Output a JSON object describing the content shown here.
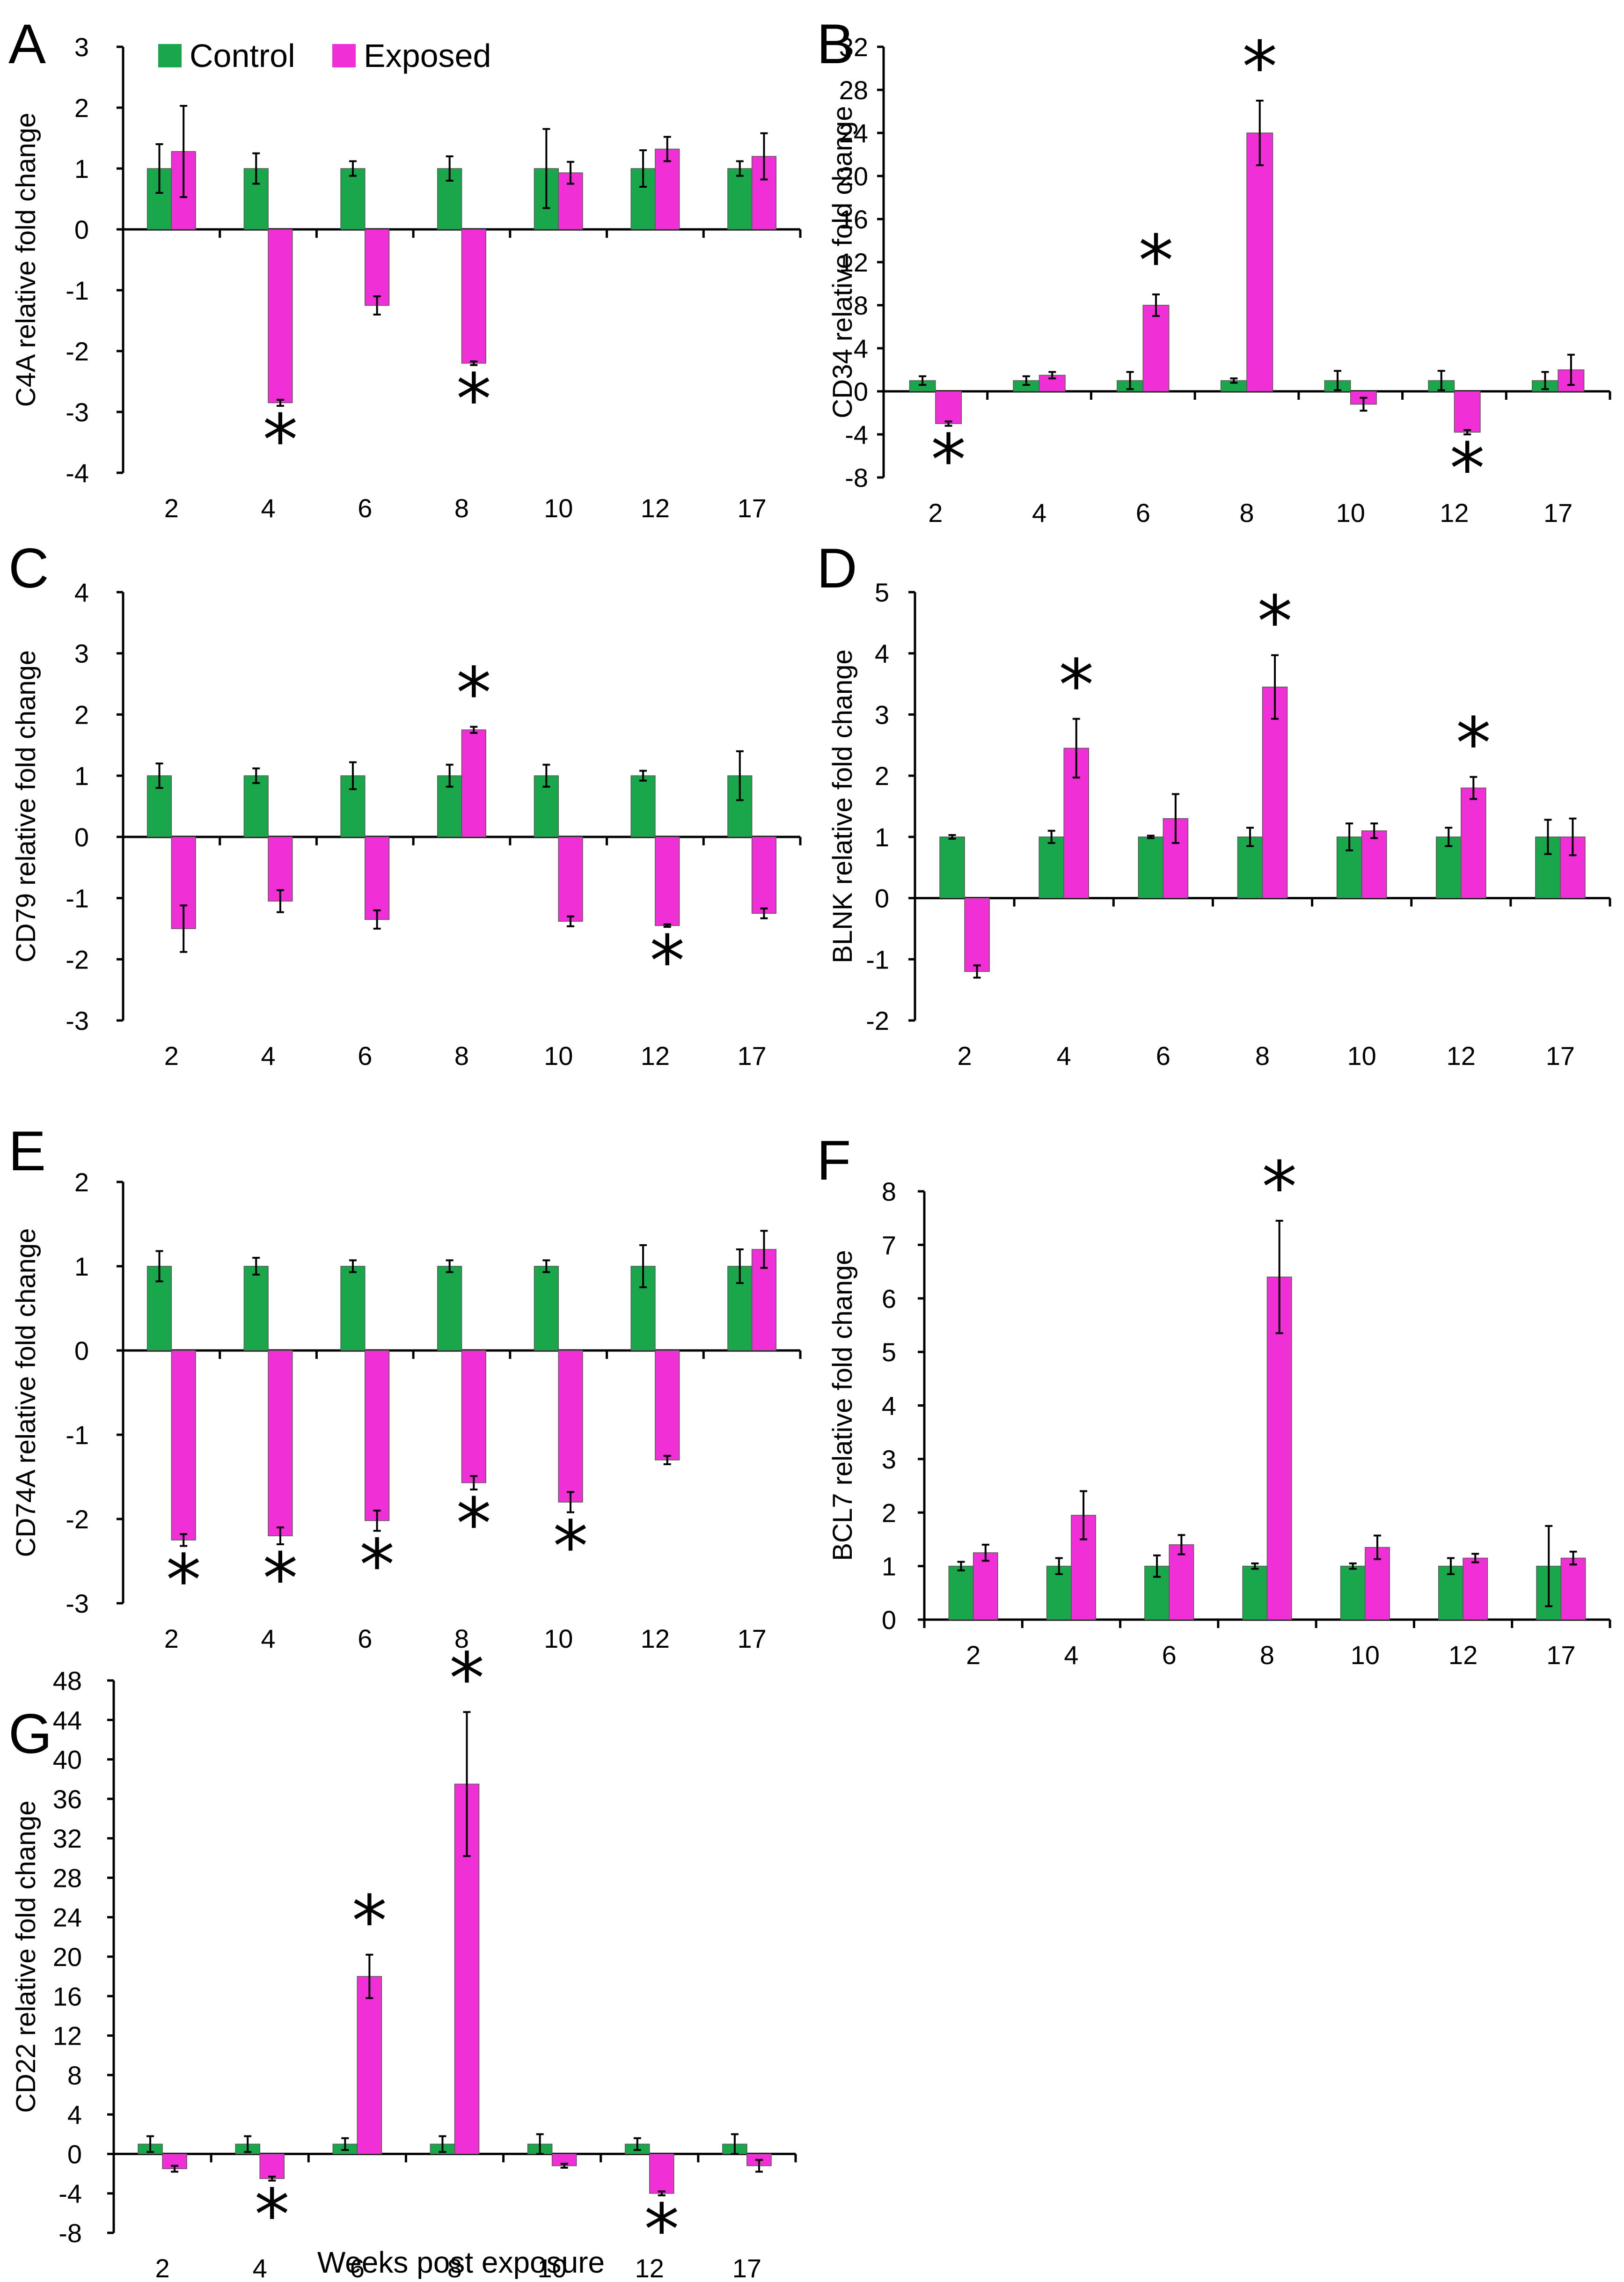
{
  "colors": {
    "control": "#1aa64a",
    "exposed": "#f02fd6",
    "axis": "#000000"
  },
  "legend": {
    "control": "Control",
    "exposed": "Exposed"
  },
  "xlabel": "Weeks post exposure",
  "chart_data": [
    {
      "panel": "A",
      "type": "bar",
      "ylabel": "C4A relative fold change",
      "categories": [
        "2",
        "4",
        "6",
        "8",
        "10",
        "12",
        "17"
      ],
      "ylim": [
        -4,
        3
      ],
      "yticks": [
        3,
        2,
        1,
        0,
        -1,
        -2,
        -3,
        -4
      ],
      "series": [
        {
          "name": "Control",
          "values": [
            1,
            1,
            1,
            1,
            1,
            1,
            1
          ],
          "errors": [
            0.4,
            0.25,
            0.12,
            0.2,
            0.65,
            0.3,
            0.12
          ]
        },
        {
          "name": "Exposed",
          "values": [
            1.28,
            -2.85,
            -1.25,
            -2.2,
            0.93,
            1.32,
            1.2
          ],
          "errors": [
            0.75,
            0.05,
            0.15,
            0.03,
            0.18,
            0.2,
            0.38
          ]
        }
      ],
      "significant": [
        {
          "category": "4",
          "mark": "*"
        },
        {
          "category": "8",
          "mark": "*"
        }
      ]
    },
    {
      "panel": "B",
      "type": "bar",
      "ylabel": "CD34 relative fold change",
      "categories": [
        "2",
        "4",
        "6",
        "8",
        "10",
        "12",
        "17"
      ],
      "ylim": [
        -8,
        32
      ],
      "yticks": [
        32,
        28,
        24,
        20,
        16,
        12,
        8,
        4,
        0,
        -4,
        -8
      ],
      "series": [
        {
          "name": "Control",
          "values": [
            1,
            1,
            1,
            1,
            1,
            1,
            1
          ],
          "errors": [
            0.4,
            0.4,
            0.8,
            0.2,
            0.9,
            0.9,
            0.8
          ]
        },
        {
          "name": "Exposed",
          "values": [
            -3,
            1.5,
            8,
            24,
            -1.2,
            -3.8,
            2
          ],
          "errors": [
            0.2,
            0.3,
            1,
            3,
            0.6,
            0.2,
            1.4
          ]
        }
      ],
      "significant": [
        {
          "category": "2",
          "mark": "*"
        },
        {
          "category": "6",
          "mark": "*"
        },
        {
          "category": "8",
          "mark": "*"
        },
        {
          "category": "12",
          "mark": "*"
        }
      ]
    },
    {
      "panel": "C",
      "type": "bar",
      "ylabel": "CD79 relative fold change",
      "categories": [
        "2",
        "4",
        "6",
        "8",
        "10",
        "12",
        "17"
      ],
      "ylim": [
        -3,
        4
      ],
      "yticks": [
        4,
        3,
        2,
        1,
        0,
        -1,
        -2,
        -3
      ],
      "series": [
        {
          "name": "Control",
          "values": [
            1,
            1,
            1,
            1,
            1,
            1,
            1
          ],
          "errors": [
            0.2,
            0.12,
            0.22,
            0.18,
            0.18,
            0.08,
            0.4
          ]
        },
        {
          "name": "Exposed",
          "values": [
            -1.5,
            -1.05,
            -1.35,
            1.75,
            -1.38,
            -1.45,
            -1.25
          ],
          "errors": [
            0.38,
            0.18,
            0.15,
            0.05,
            0.08,
            0.02,
            0.08
          ]
        }
      ],
      "significant": [
        {
          "category": "8",
          "mark": "*"
        },
        {
          "category": "12",
          "mark": "*"
        }
      ]
    },
    {
      "panel": "D",
      "type": "bar",
      "ylabel": "BLNK relative fold change",
      "categories": [
        "2",
        "4",
        "6",
        "8",
        "10",
        "12",
        "17"
      ],
      "ylim": [
        -2,
        5
      ],
      "yticks": [
        5,
        4,
        3,
        2,
        1,
        0,
        -1,
        -2
      ],
      "series": [
        {
          "name": "Control",
          "values": [
            1,
            1,
            1,
            1,
            1,
            1,
            1
          ],
          "errors": [
            0.03,
            0.1,
            0.02,
            0.15,
            0.22,
            0.15,
            0.28
          ]
        },
        {
          "name": "Exposed",
          "values": [
            -1.2,
            2.45,
            1.3,
            3.45,
            1.1,
            1.8,
            1
          ],
          "errors": [
            0.1,
            0.48,
            0.4,
            0.52,
            0.12,
            0.18,
            0.3
          ]
        }
      ],
      "significant": [
        {
          "category": "4",
          "mark": "*"
        },
        {
          "category": "8",
          "mark": "*"
        },
        {
          "category": "12",
          "mark": "*"
        }
      ]
    },
    {
      "panel": "E",
      "type": "bar",
      "ylabel": "CD74A relative fold change",
      "categories": [
        "2",
        "4",
        "6",
        "8",
        "10",
        "12",
        "17"
      ],
      "ylim": [
        -3,
        2
      ],
      "yticks": [
        2,
        1,
        0,
        -1,
        -2,
        -3
      ],
      "series": [
        {
          "name": "Control",
          "values": [
            1,
            1,
            1,
            1,
            1,
            1,
            1
          ],
          "errors": [
            0.18,
            0.1,
            0.07,
            0.07,
            0.07,
            0.25,
            0.2
          ]
        },
        {
          "name": "Exposed",
          "values": [
            -2.25,
            -2.2,
            -2.02,
            -1.57,
            -1.8,
            -1.3,
            1.2
          ],
          "errors": [
            0.07,
            0.1,
            0.12,
            0.08,
            0.12,
            0.05,
            0.22
          ]
        }
      ],
      "significant": [
        {
          "category": "2",
          "mark": "*"
        },
        {
          "category": "4",
          "mark": "*"
        },
        {
          "category": "6",
          "mark": "*"
        },
        {
          "category": "8",
          "mark": "*"
        },
        {
          "category": "10",
          "mark": "*"
        }
      ]
    },
    {
      "panel": "F",
      "type": "bar",
      "ylabel": "BCL7 relative fold change",
      "categories": [
        "2",
        "4",
        "6",
        "8",
        "10",
        "12",
        "17"
      ],
      "ylim": [
        0,
        8
      ],
      "yticks": [
        8,
        7,
        6,
        5,
        4,
        3,
        2,
        1,
        0
      ],
      "series": [
        {
          "name": "Control",
          "values": [
            1,
            1,
            1,
            1,
            1,
            1,
            1
          ],
          "errors": [
            0.08,
            0.15,
            0.2,
            0.05,
            0.05,
            0.15,
            0.75
          ]
        },
        {
          "name": "Exposed",
          "values": [
            1.25,
            1.95,
            1.4,
            6.4,
            1.35,
            1.15,
            1.15
          ],
          "errors": [
            0.15,
            0.45,
            0.18,
            1.05,
            0.22,
            0.08,
            0.12
          ]
        }
      ],
      "significant": [
        {
          "category": "8",
          "mark": "*"
        }
      ]
    },
    {
      "panel": "G",
      "type": "bar",
      "ylabel": "CD22 relative fold change",
      "categories": [
        "2",
        "4",
        "6",
        "8",
        "10",
        "12",
        "17"
      ],
      "ylim": [
        -8,
        48
      ],
      "yticks": [
        48,
        44,
        40,
        36,
        32,
        28,
        24,
        20,
        16,
        12,
        8,
        4,
        0,
        -4,
        -8
      ],
      "series": [
        {
          "name": "Control",
          "values": [
            1,
            1,
            1,
            1,
            1,
            1,
            1
          ],
          "errors": [
            0.8,
            0.8,
            0.6,
            0.8,
            1,
            0.6,
            1
          ]
        },
        {
          "name": "Exposed",
          "values": [
            -1.5,
            -2.5,
            18,
            37.5,
            -1.2,
            -4,
            -1.2
          ],
          "errors": [
            0.3,
            0.2,
            2.2,
            7.3,
            0.2,
            0.2,
            0.6
          ]
        }
      ],
      "significant": [
        {
          "category": "4",
          "mark": "*"
        },
        {
          "category": "6",
          "mark": "*"
        },
        {
          "category": "8",
          "mark": "*"
        },
        {
          "category": "12",
          "mark": "*"
        }
      ]
    }
  ]
}
